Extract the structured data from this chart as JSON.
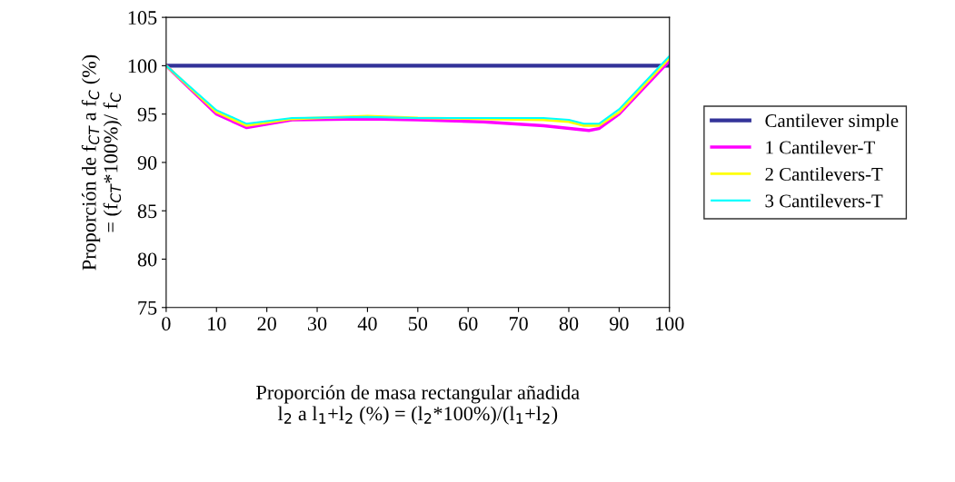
{
  "chart_data": {
    "type": "line",
    "xlabel": "Proporción de masa rectangular añadida\nl$_{2}$ a l$_{1}$+l$_{2}$ (%) = (l$_{2}$*100%)/(l$_{1}$+l$_{2}$)",
    "ylabel": "Proporción de f$_{CT}$ a f$_{C}$ (%)\n= (f$_{CT}$*100%)/ f$_{C}$",
    "xlim": [
      0,
      100
    ],
    "xticks": [
      0,
      10,
      20,
      30,
      40,
      50,
      60,
      70,
      80,
      90,
      100
    ],
    "ylim": [
      75,
      105
    ],
    "yticks": [
      75,
      80,
      85,
      90,
      95,
      100,
      105
    ],
    "grid": false,
    "legend": "right",
    "marker": "none",
    "line_style": "solid",
    "series": [
      {
        "name": "Cantilever simple",
        "color": "#333399",
        "x": [
          0,
          100
        ],
        "values": [
          100,
          100
        ]
      },
      {
        "name": "1 Cantilever-T",
        "color": "#ff00ff",
        "x": [
          0,
          10,
          16,
          25,
          40,
          50,
          63,
          75,
          84,
          86,
          90,
          100
        ],
        "values": [
          100,
          95.0,
          93.6,
          94.4,
          94.5,
          94.4,
          94.2,
          93.8,
          93.3,
          93.5,
          95.0,
          100.5
        ]
      },
      {
        "name": "2 Cantilevers-T",
        "color": "#ffff00",
        "x": [
          0,
          10,
          16,
          25,
          40,
          50,
          75,
          80,
          83,
          86,
          90,
          100
        ],
        "values": [
          100,
          95.2,
          93.8,
          94.5,
          94.8,
          94.6,
          94.4,
          94.2,
          93.8,
          93.8,
          95.2,
          100.8
        ]
      },
      {
        "name": "3 Cantilevers-T",
        "color": "#00ffff",
        "x": [
          0,
          10,
          16,
          25,
          40,
          50,
          75,
          80,
          83,
          86,
          90,
          100
        ],
        "values": [
          100,
          95.4,
          94.0,
          94.6,
          94.7,
          94.6,
          94.6,
          94.4,
          94.0,
          94.0,
          95.5,
          101.0
        ]
      }
    ]
  }
}
